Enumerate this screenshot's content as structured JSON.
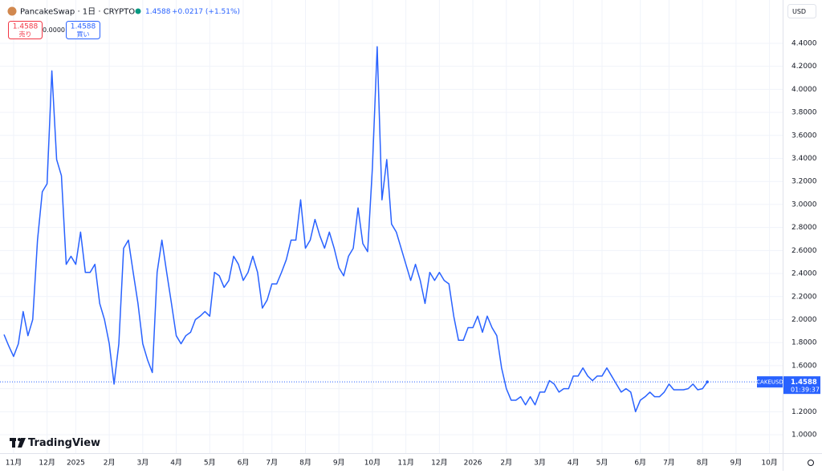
{
  "chart_data": {
    "type": "line",
    "symbol": "PancakeSwap · 1日 · CRYPTO",
    "change": "+0.0217 (+1.51%)",
    "sell_label": "売り",
    "spread": "0.0000",
    "buy_label": "買い",
    "currency": "USD",
    "ticker": "CAKEUSD",
    "countdown": "01:39:37",
    "brand": "TradingView",
    "color": "#2962ff",
    "grid": true,
    "ylim": [
      0.84,
      4.72
    ],
    "yticks": [
      {
        "value": 1.0,
        "label": "1.0000"
      },
      {
        "value": 1.2,
        "label": "1.2000"
      },
      {
        "value": 1.4,
        "label": "1.4000"
      },
      {
        "value": 1.6,
        "label": "1.6000"
      },
      {
        "value": 1.8,
        "label": "1.8000"
      },
      {
        "value": 2.0,
        "label": "2.0000"
      },
      {
        "value": 2.2,
        "label": "2.2000"
      },
      {
        "value": 2.4,
        "label": "2.4000"
      },
      {
        "value": 2.6,
        "label": "2.6000"
      },
      {
        "value": 2.8,
        "label": "2.8000"
      },
      {
        "value": 3.0,
        "label": "3.0000"
      },
      {
        "value": 3.2,
        "label": "3.2000"
      },
      {
        "value": 3.4,
        "label": "3.4000"
      },
      {
        "value": 3.6,
        "label": "3.6000"
      },
      {
        "value": 3.8,
        "label": "3.8000"
      },
      {
        "value": 4.0,
        "label": "4.0000"
      },
      {
        "value": 4.2,
        "label": "4.2000"
      },
      {
        "value": 4.4,
        "label": "4.4000"
      }
    ],
    "categories": [
      null,
      null,
      "11月",
      null,
      null,
      null,
      null,
      null,
      null,
      "12月",
      null,
      null,
      null,
      null,
      null,
      "2025",
      null,
      null,
      null,
      null,
      null,
      null,
      "2月",
      null,
      null,
      null,
      null,
      null,
      null,
      "3月",
      null,
      null,
      null,
      null,
      null,
      null,
      "4月",
      null,
      null,
      null,
      null,
      null,
      null,
      "5月",
      null,
      null,
      null,
      null,
      null,
      null,
      "6月",
      null,
      null,
      null,
      null,
      null,
      "7月",
      null,
      null,
      null,
      null,
      null,
      null,
      "8月",
      null,
      null,
      null,
      null,
      null,
      null,
      "9月",
      null,
      null,
      null,
      null,
      null,
      null,
      "10月",
      null,
      null,
      null,
      null,
      null,
      null,
      "11月",
      null,
      null,
      null,
      null,
      null,
      null,
      "12月",
      null,
      null,
      null,
      null,
      null,
      null,
      "2026",
      null,
      null,
      null,
      null,
      null,
      null,
      "2月",
      null,
      null,
      null,
      null,
      null,
      null,
      "3月",
      null,
      null,
      null,
      null,
      null,
      null,
      "4月",
      null,
      null,
      null,
      null,
      null,
      "5月",
      null,
      null,
      null,
      null,
      null,
      null,
      null,
      "6月",
      null,
      null,
      null,
      null,
      null,
      "7月",
      null,
      null,
      null,
      null,
      null,
      null,
      "8月",
      null,
      null,
      null,
      null,
      null,
      null,
      "9月",
      null,
      null,
      null,
      null,
      null,
      null,
      "10月"
    ],
    "values": [
      1.87,
      1.77,
      1.68,
      1.79,
      2.07,
      1.86,
      2.0,
      2.69,
      3.11,
      3.18,
      4.16,
      3.39,
      3.25,
      2.48,
      2.55,
      2.48,
      2.76,
      2.41,
      2.41,
      2.48,
      2.14,
      2.0,
      1.79,
      1.44,
      1.79,
      2.62,
      2.69,
      2.41,
      2.14,
      1.79,
      1.65,
      1.54,
      2.41,
      2.69,
      2.41,
      2.14,
      1.86,
      1.79,
      1.86,
      1.89,
      2.0,
      2.03,
      2.07,
      2.03,
      2.41,
      2.38,
      2.28,
      2.34,
      2.55,
      2.48,
      2.34,
      2.41,
      2.55,
      2.41,
      2.1,
      2.17,
      2.31,
      2.31,
      2.41,
      2.52,
      2.69,
      2.69,
      3.04,
      2.62,
      2.69,
      2.87,
      2.73,
      2.62,
      2.76,
      2.62,
      2.45,
      2.38,
      2.55,
      2.62,
      2.97,
      2.66,
      2.59,
      3.32,
      4.37,
      3.04,
      3.39,
      2.83,
      2.76,
      2.62,
      2.48,
      2.34,
      2.48,
      2.34,
      2.14,
      2.41,
      2.34,
      2.41,
      2.34,
      2.31,
      2.03,
      1.82,
      1.82,
      1.93,
      1.93,
      2.03,
      1.89,
      2.03,
      1.93,
      1.86,
      1.58,
      1.4,
      1.3,
      1.3,
      1.33,
      1.26,
      1.33,
      1.26,
      1.37,
      1.37,
      1.47,
      1.44,
      1.37,
      1.4,
      1.4,
      1.51,
      1.51,
      1.58,
      1.51,
      1.47,
      1.51,
      1.51,
      1.58,
      1.51,
      1.44,
      1.37,
      1.4,
      1.37,
      1.2,
      1.3,
      1.33,
      1.37,
      1.33,
      1.33,
      1.37,
      1.44,
      1.39,
      1.39,
      1.39,
      1.4,
      1.44,
      1.39,
      1.4,
      1.4588,
      null,
      null,
      null,
      null,
      null,
      null,
      null,
      null,
      null,
      null,
      null,
      null,
      null
    ]
  }
}
